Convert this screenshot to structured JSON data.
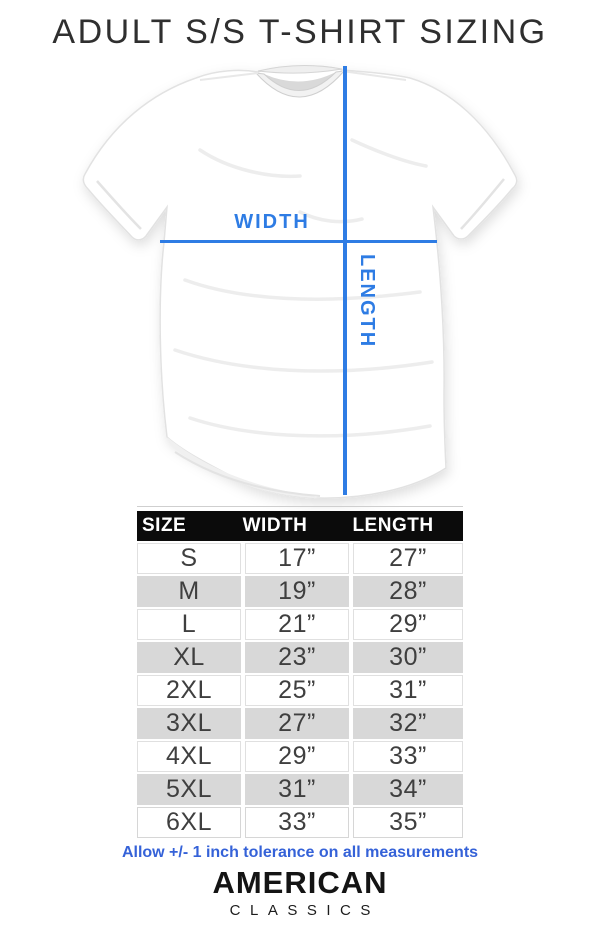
{
  "title": "ADULT S/S T-SHIRT SIZING",
  "diagram": {
    "width_label": "WIDTH",
    "length_label": "LENGTH"
  },
  "chart_data": {
    "type": "table",
    "title": "ADULT S/S T-SHIRT SIZING",
    "columns": [
      "SIZE",
      "WIDTH",
      "LENGTH"
    ],
    "rows": [
      [
        "S",
        "17”",
        "27”"
      ],
      [
        "M",
        "19”",
        "28”"
      ],
      [
        "L",
        "21”",
        "29”"
      ],
      [
        "XL",
        "23”",
        "30”"
      ],
      [
        "2XL",
        "25”",
        "31”"
      ],
      [
        "3XL",
        "27”",
        "32”"
      ],
      [
        "4XL",
        "29”",
        "33”"
      ],
      [
        "5XL",
        "31”",
        "34”"
      ],
      [
        "6XL",
        "33”",
        "35”"
      ]
    ],
    "units": "inches",
    "grid": "alternating-row-shading",
    "legend": "none",
    "note": "Allow +/- 1 inch tolerance on all measurements"
  },
  "footnote": "Allow +/- 1 inch tolerance on all measurements",
  "brand": {
    "line1": "AMERICAN",
    "line2": "CLASSICS"
  },
  "colors": {
    "accent_blue": "#2e7ce4",
    "note_blue": "#3562d8",
    "header_bg": "#0b0b0b",
    "header_text": "#ffffff",
    "alt_row": "#d8d8d8",
    "body_text": "#3f3f3f",
    "title_text": "#2f2f2f"
  }
}
